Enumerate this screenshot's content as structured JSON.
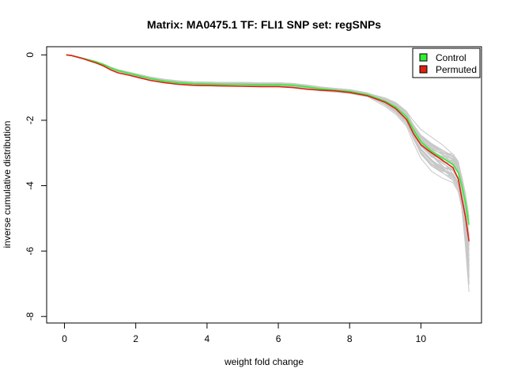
{
  "chart_data": {
    "type": "line",
    "title": "Matrix: MA0475.1 TF: FLI1 SNP set: regSNPs",
    "xlabel": "weight fold change",
    "ylabel": "inverse cumulative distribution",
    "xlim": [
      -0.5,
      11.7
    ],
    "ylim": [
      -8.2,
      0.25
    ],
    "x_ticks": [
      0,
      2,
      4,
      6,
      8,
      10
    ],
    "y_ticks": [
      0,
      -2,
      -4,
      -6,
      -8
    ],
    "x_tick_labels": [
      "0",
      "2",
      "4",
      "6",
      "8",
      "10"
    ],
    "y_tick_labels": [
      "0",
      "-2",
      "-4",
      "-6",
      "-8"
    ],
    "legend": {
      "position": "top-right",
      "entries": [
        "Control",
        "Permuted"
      ]
    },
    "colors": {
      "Control": "#33ee33",
      "Permuted": "#dd2211",
      "background_runs": "#c8c8c8"
    },
    "series": [
      {
        "name": "Control",
        "x": [
          0.05,
          0.2,
          0.5,
          0.9,
          1.1,
          1.3,
          1.5,
          1.8,
          2.1,
          2.4,
          2.8,
          3.2,
          3.6,
          4.0,
          4.5,
          5.0,
          5.5,
          6.0,
          6.4,
          6.8,
          7.2,
          7.6,
          8.0,
          8.5,
          9.0,
          9.3,
          9.6,
          9.8,
          10.0,
          10.3,
          10.6,
          10.9,
          11.05,
          11.15,
          11.25,
          11.35
        ],
        "y": [
          0.0,
          -0.02,
          -0.1,
          -0.22,
          -0.3,
          -0.4,
          -0.48,
          -0.56,
          -0.64,
          -0.72,
          -0.8,
          -0.85,
          -0.88,
          -0.89,
          -0.9,
          -0.9,
          -0.91,
          -0.91,
          -0.93,
          -0.98,
          -1.04,
          -1.08,
          -1.12,
          -1.22,
          -1.42,
          -1.6,
          -1.9,
          -2.3,
          -2.65,
          -2.95,
          -3.15,
          -3.35,
          -3.6,
          -4.0,
          -4.5,
          -5.2
        ]
      },
      {
        "name": "Permuted",
        "x": [
          0.05,
          0.2,
          0.5,
          0.9,
          1.1,
          1.3,
          1.5,
          1.8,
          2.1,
          2.4,
          2.8,
          3.2,
          3.6,
          4.0,
          4.5,
          5.0,
          5.5,
          6.0,
          6.4,
          6.8,
          7.2,
          7.6,
          8.0,
          8.5,
          9.0,
          9.3,
          9.6,
          9.8,
          10.0,
          10.3,
          10.6,
          10.9,
          11.05,
          11.15,
          11.25,
          11.35
        ],
        "y": [
          0.0,
          -0.02,
          -0.11,
          -0.25,
          -0.34,
          -0.46,
          -0.55,
          -0.62,
          -0.7,
          -0.78,
          -0.85,
          -0.9,
          -0.93,
          -0.94,
          -0.95,
          -0.96,
          -0.97,
          -0.97,
          -1.0,
          -1.05,
          -1.08,
          -1.1,
          -1.15,
          -1.25,
          -1.45,
          -1.65,
          -1.98,
          -2.42,
          -2.75,
          -3.0,
          -3.22,
          -3.45,
          -3.8,
          -4.4,
          -4.95,
          -5.7
        ]
      }
    ]
  }
}
